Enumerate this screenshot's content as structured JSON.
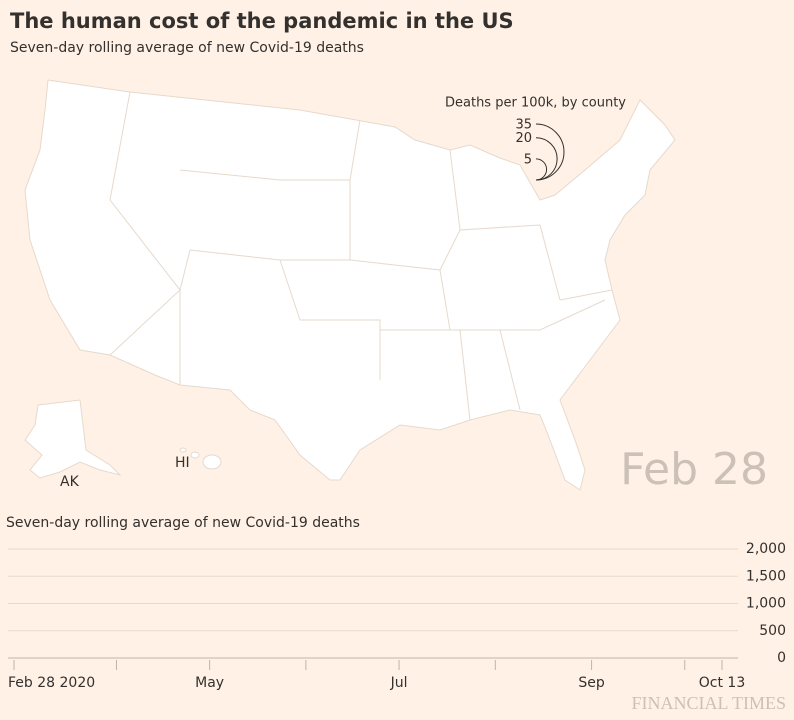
{
  "header": {
    "title": "The human cost of the pandemic in the US",
    "subtitle": "Seven-day rolling average of new Covid-19 deaths"
  },
  "map": {
    "legend_title": "Deaths per 100k, by county",
    "legend_sizes": [
      35,
      20,
      5
    ],
    "labels": [
      "AK",
      "HI"
    ],
    "date": "Feb 28"
  },
  "chart_data": {
    "type": "line",
    "title": "Seven-day rolling average of new Covid-19 deaths",
    "ylim": [
      0,
      2000
    ],
    "yticks": [
      0,
      500,
      {
        "value": 1000,
        "label": "1,000"
      },
      {
        "value": 1500,
        "label": "1,500"
      },
      {
        "value": 2000,
        "label": "2,000"
      }
    ],
    "xlim": [
      "2020-02-28",
      "2020-10-13"
    ],
    "xticks": [
      {
        "value": "2020-02-28",
        "label": "Feb 28 2020"
      },
      {
        "value": "2020-05-01",
        "label": "May"
      },
      {
        "value": "2020-07-01",
        "label": "Jul"
      },
      {
        "value": "2020-09-01",
        "label": "Sep"
      },
      {
        "value": "2020-10-13",
        "label": "Oct 13"
      }
    ],
    "xminorticks": [
      "2020-04-01",
      "2020-06-01",
      "2020-08-01",
      "2020-10-01"
    ],
    "grid": true
  },
  "footer": {
    "source": "FINANCIAL TIMES"
  }
}
